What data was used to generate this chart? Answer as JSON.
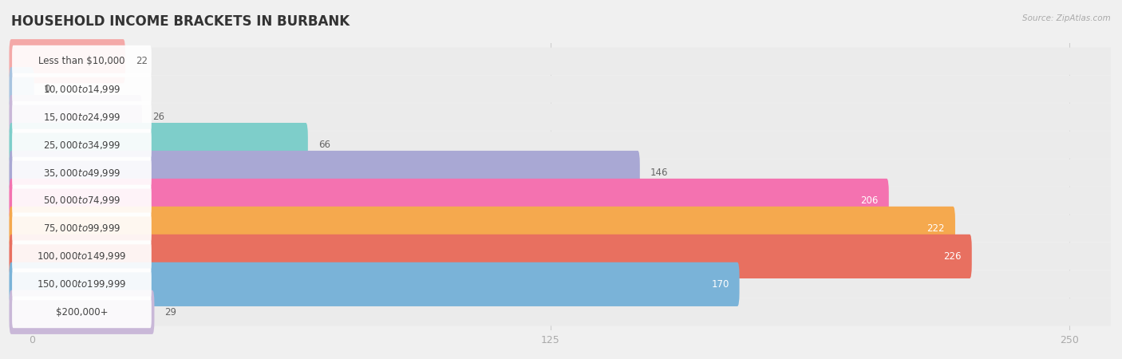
{
  "title": "HOUSEHOLD INCOME BRACKETS IN BURBANK",
  "source": "Source: ZipAtlas.com",
  "categories": [
    "Less than $10,000",
    "$10,000 to $14,999",
    "$15,000 to $24,999",
    "$25,000 to $34,999",
    "$35,000 to $49,999",
    "$50,000 to $74,999",
    "$75,000 to $99,999",
    "$100,000 to $149,999",
    "$150,000 to $199,999",
    "$200,000+"
  ],
  "values": [
    22,
    0,
    26,
    66,
    146,
    206,
    222,
    226,
    170,
    29
  ],
  "bar_colors": [
    "#f4a9a8",
    "#a8c4e0",
    "#c9b8d8",
    "#7ececa",
    "#a9a8d4",
    "#f472b0",
    "#f5a94e",
    "#e87060",
    "#7ab3d8",
    "#c9b8d8"
  ],
  "xlim_min": -5,
  "xlim_max": 260,
  "data_max": 250,
  "xticks": [
    0,
    125,
    250
  ],
  "background_color": "#f0f0f0",
  "bar_bg_color": "#ffffff",
  "row_bg_color": "#f5f5f5",
  "title_fontsize": 12,
  "label_fontsize": 8.5,
  "value_fontsize": 8.5
}
